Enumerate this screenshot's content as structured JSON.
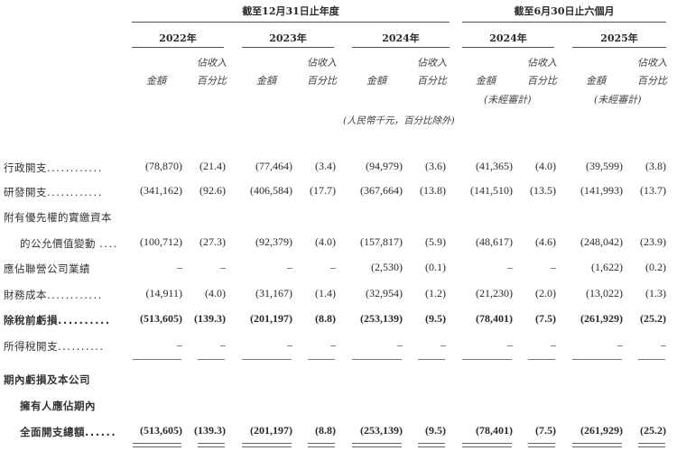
{
  "header": {
    "fy_group": "截至12月31日止年度",
    "h1_group": "截至6月30日止六個月",
    "years": [
      "2022年",
      "2023年",
      "2024年",
      "2024年",
      "2025年"
    ],
    "amount_label": "金額",
    "pct_label_line1": "佔收入",
    "pct_label_line2": "百分比",
    "unaudited": "(未經審計)",
    "unit_note": "(人民幣千元，百分比除外)"
  },
  "rows": [
    {
      "label": "行政開支",
      "dots": "............",
      "values": [
        "(78,870)",
        "(21.4)",
        "(77,464)",
        "(3.4)",
        "(94,979)",
        "(3.6)",
        "(41,365)",
        "(4.0)",
        "(39,599)",
        "(3.8)"
      ]
    },
    {
      "label": "研發開支",
      "dots": "............",
      "values": [
        "(341,162)",
        "(92.6)",
        "(406,584)",
        "(17.7)",
        "(367,664)",
        "(13.8)",
        "(141,510)",
        "(13.5)",
        "(141,993)",
        "(13.7)"
      ]
    },
    {
      "label": "附有優先權的實繳資本",
      "label2": "的公允價值變動",
      "dots": "....",
      "values": [
        "(100,712)",
        "(27.3)",
        "(92,379)",
        "(4.0)",
        "(157,817)",
        "(5.9)",
        "(48,617)",
        "(4.6)",
        "(248,042)",
        "(23.9)"
      ]
    },
    {
      "label": "應佔聯營公司業績",
      "dots": "",
      "values": [
        "–",
        "–",
        "–",
        "–",
        "(2,530)",
        "(0.1)",
        "–",
        "–",
        "(1,622)",
        "(0.2)"
      ]
    },
    {
      "label": "財務成本",
      "dots": "............",
      "values": [
        "(14,911)",
        "(4.0)",
        "(31,167)",
        "(1.4)",
        "(32,954)",
        "(1.2)",
        "(21,230)",
        "(2.0)",
        "(13,022)",
        "(1.3)"
      ]
    },
    {
      "label": "除稅前虧損",
      "dots": "..........",
      "values": [
        "(513,605)",
        "(139.3)",
        "(201,197)",
        "(8.8)",
        "(253,139)",
        "(9.5)",
        "(78,401)",
        "(7.5)",
        "(261,929)",
        "(25.2)"
      ]
    },
    {
      "label": "所得稅開支",
      "dots": "..........",
      "values": [
        "–",
        "–",
        "–",
        "–",
        "–",
        "–",
        "–",
        "–",
        "–",
        "–"
      ]
    },
    {
      "label": "期內虧損及本公司",
      "label2": "擁有人應佔期內",
      "label3": "全面開支總額",
      "dots": "......",
      "values": [
        "(513,605)",
        "(139.3)",
        "(201,197)",
        "(8.8)",
        "(253,139)",
        "(9.5)",
        "(78,401)",
        "(7.5)",
        "(261,929)",
        "(25.2)"
      ]
    }
  ]
}
